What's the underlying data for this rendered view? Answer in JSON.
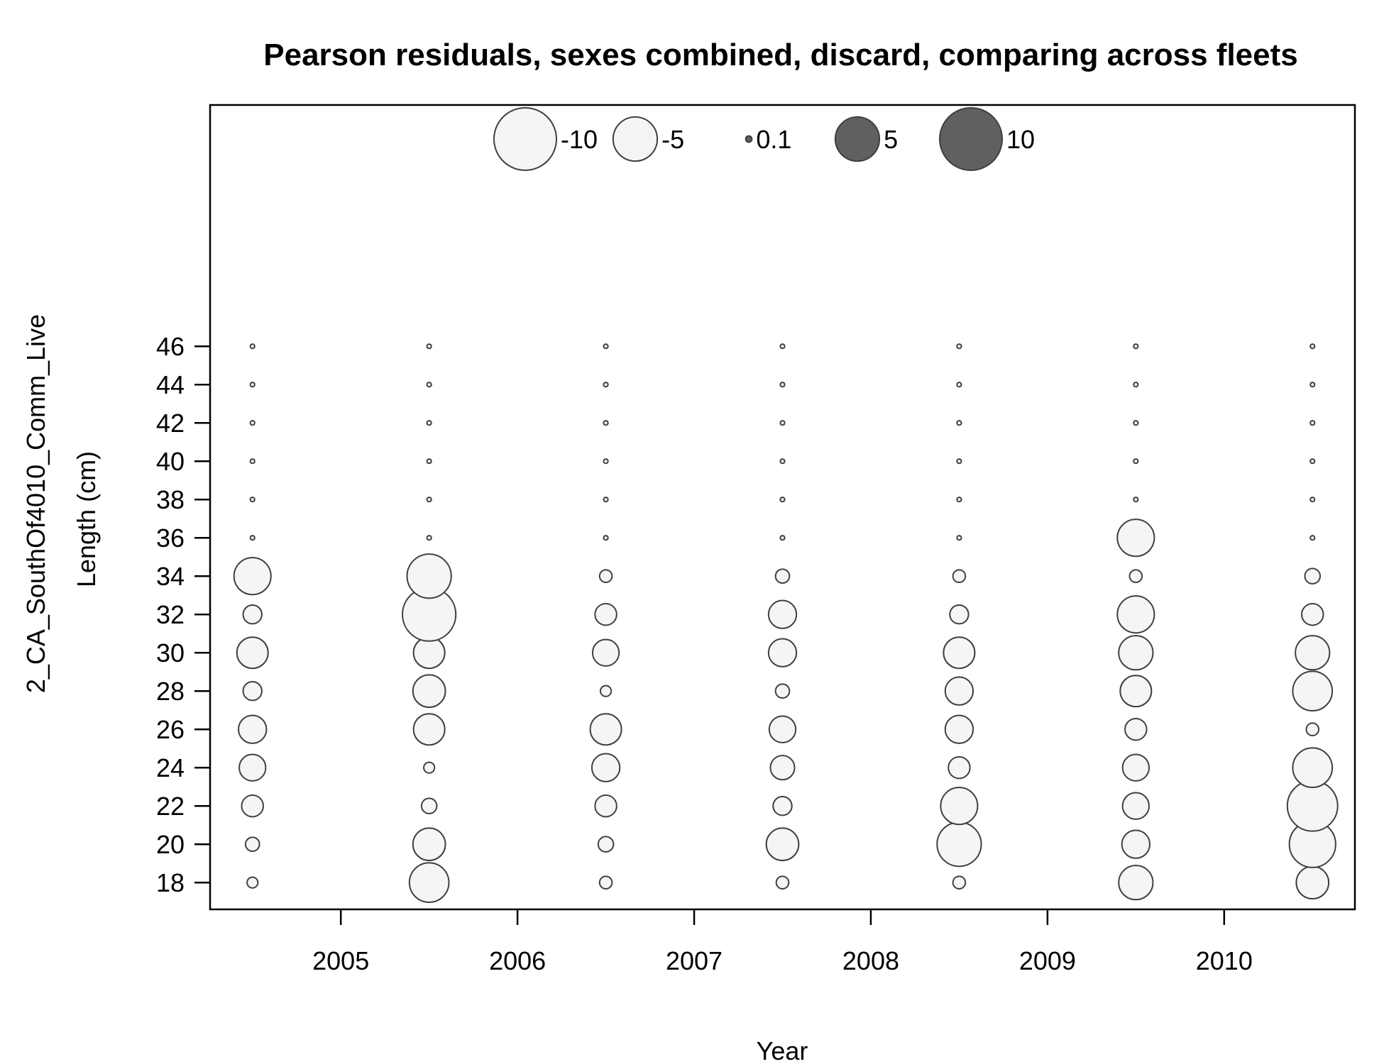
{
  "chart_data": {
    "type": "scatter",
    "subtype": "bubble",
    "title": "Pearson residuals, sexes combined, discard, comparing across fleets",
    "xlabel": "Year",
    "ylabel": "Length (cm)",
    "fleet_label": "2_CA_SouthOf4010_Comm_Live",
    "xlim": [
      2004.26,
      2010.74
    ],
    "ylim": [
      16.6,
      58.6
    ],
    "x_ticks": [
      2005,
      2006,
      2007,
      2008,
      2009,
      2010
    ],
    "y_ticks": [
      18,
      20,
      22,
      24,
      26,
      28,
      30,
      32,
      34,
      36,
      38,
      40,
      42,
      44,
      46
    ],
    "legend": {
      "placement": "top",
      "entries": [
        {
          "value": -10,
          "label": "-10"
        },
        {
          "value": -5,
          "label": "-5"
        },
        {
          "value": 0.1,
          "label": "0.1"
        },
        {
          "value": 5,
          "label": "5"
        },
        {
          "value": 10,
          "label": "10"
        }
      ]
    },
    "colors": {
      "negative_fill": "#f5f5f5",
      "positive_fill": "#606060",
      "stroke": "#404040"
    },
    "lengths": [
      18,
      20,
      22,
      24,
      26,
      28,
      30,
      32,
      34,
      36,
      38,
      40,
      42,
      44,
      46
    ],
    "series": [
      {
        "year": 2004.5,
        "residuals": [
          -0.3,
          -0.5,
          -1.2,
          -1.8,
          -2.0,
          -0.9,
          -2.5,
          -0.9,
          -3.5,
          -0.05,
          -0.05,
          -0.05,
          -0.05,
          -0.05,
          -0.05
        ]
      },
      {
        "year": 2005.5,
        "residuals": [
          -4.0,
          -2.7,
          -0.6,
          -0.3,
          -2.5,
          -2.7,
          -2.5,
          -7.3,
          -5.0,
          -0.05,
          -0.05,
          -0.05,
          -0.05,
          -0.05,
          -0.05
        ]
      },
      {
        "year": 2006.5,
        "residuals": [
          -0.4,
          -0.6,
          -1.2,
          -2.0,
          -2.5,
          -0.3,
          -1.8,
          -1.2,
          -0.4,
          -0.05,
          -0.05,
          -0.05,
          -0.05,
          -0.05,
          -0.05
        ]
      },
      {
        "year": 2007.5,
        "residuals": [
          -0.4,
          -2.7,
          -0.9,
          -1.5,
          -1.8,
          -0.5,
          -2.0,
          -2.0,
          -0.5,
          -0.05,
          -0.05,
          -0.05,
          -0.05,
          -0.05,
          -0.05
        ]
      },
      {
        "year": 2008.5,
        "residuals": [
          -0.4,
          -5.0,
          -3.5,
          -1.2,
          -2.0,
          -2.0,
          -2.5,
          -0.9,
          -0.4,
          -0.05,
          -0.05,
          -0.05,
          -0.05,
          -0.05,
          -0.05
        ]
      },
      {
        "year": 2009.5,
        "residuals": [
          -3.0,
          -2.0,
          -1.8,
          -1.8,
          -1.2,
          -2.5,
          -3.0,
          -3.5,
          -0.4,
          -3.5,
          -0.05,
          -0.05,
          -0.05,
          -0.05,
          -0.05
        ]
      },
      {
        "year": 2010.5,
        "residuals": [
          -2.7,
          -5.5,
          -6.5,
          -4.0,
          -0.4,
          -4.0,
          -3.0,
          -1.2,
          -0.6,
          -0.05,
          -0.05,
          -0.05,
          -0.05,
          -0.05,
          -0.05
        ]
      }
    ]
  }
}
